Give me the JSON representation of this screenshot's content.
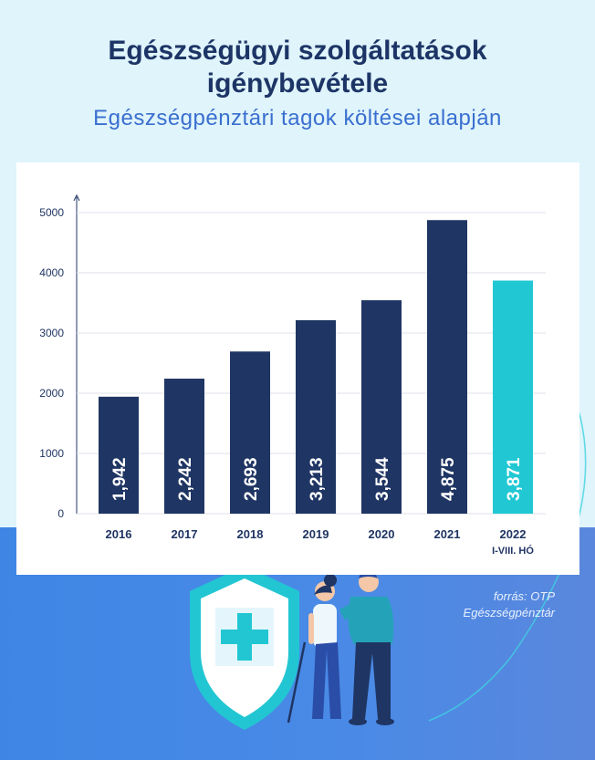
{
  "header": {
    "title_line1": "Egészségügyi szolgáltatások",
    "title_line2": "igénybevétele",
    "subtitle": "Egészségpénztári tagok költései alapján"
  },
  "source": {
    "line1": "forrás: OTP",
    "line2": "Egészségpénztár"
  },
  "colors": {
    "bar_main": "#1f3563",
    "bar_highlight": "#21c8d3",
    "title": "#1d3566",
    "subtitle": "#3a6fd0"
  },
  "chart_data": {
    "type": "bar",
    "categories": [
      "2016",
      "2017",
      "2018",
      "2019",
      "2020",
      "2021",
      "2022"
    ],
    "category_sublabels": [
      "",
      "",
      "",
      "",
      "",
      "",
      "I-VIII. HÓ"
    ],
    "values": [
      1942,
      2242,
      2693,
      3213,
      3544,
      4875,
      3871
    ],
    "value_labels": [
      "1,942",
      "2,242",
      "2,693",
      "3,213",
      "3,544",
      "4,875",
      "3,871"
    ],
    "highlight_index": 6,
    "yticks": [
      0,
      1000,
      2000,
      3000,
      4000,
      5000
    ],
    "ylim": [
      0,
      5000
    ],
    "grid": true,
    "title": "",
    "xlabel": "",
    "ylabel": ""
  }
}
